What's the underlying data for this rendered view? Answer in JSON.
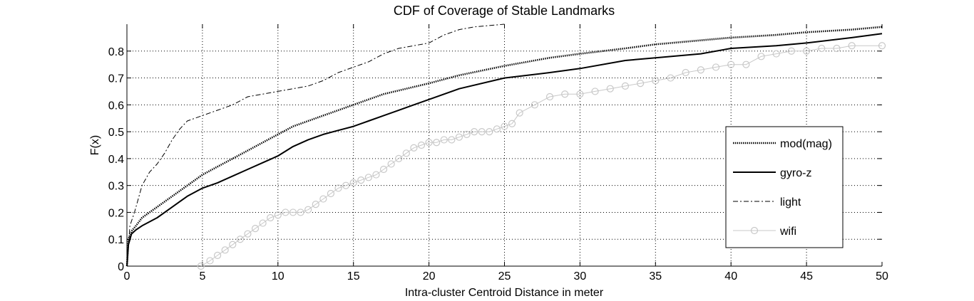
{
  "chart_data": {
    "type": "line",
    "title": "CDF of Coverage of Stable Landmarks",
    "xlabel": "Intra-cluster Centroid Distance in meter",
    "ylabel": "F(x)",
    "xlim": [
      0,
      50
    ],
    "ylim": [
      0,
      0.9
    ],
    "xticks": [
      "0",
      "5",
      "10",
      "15",
      "20",
      "25",
      "30",
      "35",
      "40",
      "45",
      "50"
    ],
    "yticks": [
      "0",
      "0.1",
      "0.2",
      "0.3",
      "0.4",
      "0.5",
      "0.6",
      "0.7",
      "0.8"
    ],
    "grid": true,
    "legend_position": "right",
    "series": [
      {
        "name": "mod(mag)",
        "style": "dotted",
        "color": "#000000",
        "x": [
          0,
          0.1,
          0.3,
          0.6,
          1,
          1.5,
          2,
          3,
          4,
          5,
          6,
          7,
          8,
          9,
          10,
          11,
          12,
          13,
          14,
          15,
          17,
          20,
          22,
          25,
          28,
          30,
          33,
          35,
          38,
          40,
          43,
          45,
          48,
          50
        ],
        "y": [
          0,
          0.1,
          0.13,
          0.15,
          0.18,
          0.2,
          0.22,
          0.26,
          0.3,
          0.34,
          0.37,
          0.4,
          0.43,
          0.46,
          0.49,
          0.52,
          0.54,
          0.56,
          0.58,
          0.6,
          0.64,
          0.68,
          0.71,
          0.745,
          0.775,
          0.79,
          0.81,
          0.825,
          0.84,
          0.85,
          0.86,
          0.87,
          0.88,
          0.89
        ]
      },
      {
        "name": "gyro-z",
        "style": "solid",
        "color": "#000000",
        "x": [
          0,
          0.1,
          0.3,
          0.6,
          1,
          2,
          3,
          4,
          5,
          6,
          7,
          8,
          9,
          10,
          11,
          12,
          13,
          14,
          15,
          16,
          17,
          18,
          19,
          20,
          22,
          25,
          28,
          30,
          33,
          35,
          38,
          40,
          43,
          45,
          48,
          50
        ],
        "y": [
          0,
          0.08,
          0.12,
          0.135,
          0.15,
          0.18,
          0.22,
          0.26,
          0.29,
          0.31,
          0.335,
          0.36,
          0.385,
          0.41,
          0.445,
          0.47,
          0.49,
          0.505,
          0.52,
          0.54,
          0.56,
          0.58,
          0.6,
          0.62,
          0.66,
          0.7,
          0.72,
          0.735,
          0.765,
          0.775,
          0.79,
          0.81,
          0.82,
          0.83,
          0.85,
          0.865
        ]
      },
      {
        "name": "light",
        "style": "dashdot",
        "color": "#000000",
        "x": [
          0,
          0.2,
          0.5,
          1,
          1.5,
          2,
          2.5,
          3,
          3.5,
          4,
          5,
          6,
          7,
          8,
          9,
          10,
          11,
          12,
          13,
          14,
          15,
          16,
          17,
          18,
          19,
          20,
          21,
          22,
          23,
          24,
          25
        ],
        "y": [
          0,
          0.15,
          0.2,
          0.3,
          0.35,
          0.38,
          0.42,
          0.47,
          0.51,
          0.54,
          0.56,
          0.58,
          0.6,
          0.63,
          0.64,
          0.65,
          0.66,
          0.67,
          0.69,
          0.72,
          0.74,
          0.76,
          0.79,
          0.81,
          0.82,
          0.83,
          0.86,
          0.88,
          0.89,
          0.895,
          0.9
        ]
      },
      {
        "name": "wifi",
        "style": "circle-markers",
        "color": "#c8c8c8",
        "x": [
          4.9,
          5.5,
          6,
          6.5,
          7,
          7.5,
          8,
          8.5,
          9,
          9.5,
          10,
          10.5,
          11,
          11.5,
          12,
          12.5,
          13,
          13.5,
          14,
          14.5,
          15,
          15.5,
          16,
          16.5,
          17,
          17.5,
          18,
          18.5,
          19,
          19.5,
          20,
          20.5,
          21,
          21.5,
          22,
          22.5,
          23,
          23.5,
          24,
          24.5,
          25,
          25.5,
          26,
          27,
          28,
          29,
          30,
          31,
          32,
          33,
          34,
          35,
          36,
          37,
          38,
          39,
          40,
          41,
          42,
          43,
          44,
          45,
          46,
          47,
          48,
          50
        ],
        "y": [
          0,
          0.02,
          0.04,
          0.06,
          0.08,
          0.1,
          0.12,
          0.14,
          0.16,
          0.18,
          0.19,
          0.2,
          0.2,
          0.2,
          0.21,
          0.23,
          0.25,
          0.27,
          0.29,
          0.3,
          0.31,
          0.32,
          0.33,
          0.34,
          0.36,
          0.38,
          0.4,
          0.42,
          0.44,
          0.45,
          0.46,
          0.46,
          0.47,
          0.47,
          0.48,
          0.49,
          0.5,
          0.5,
          0.5,
          0.51,
          0.52,
          0.53,
          0.57,
          0.6,
          0.63,
          0.64,
          0.64,
          0.65,
          0.66,
          0.67,
          0.68,
          0.69,
          0.7,
          0.72,
          0.73,
          0.74,
          0.75,
          0.75,
          0.78,
          0.79,
          0.8,
          0.8,
          0.81,
          0.81,
          0.82,
          0.82
        ]
      }
    ]
  }
}
